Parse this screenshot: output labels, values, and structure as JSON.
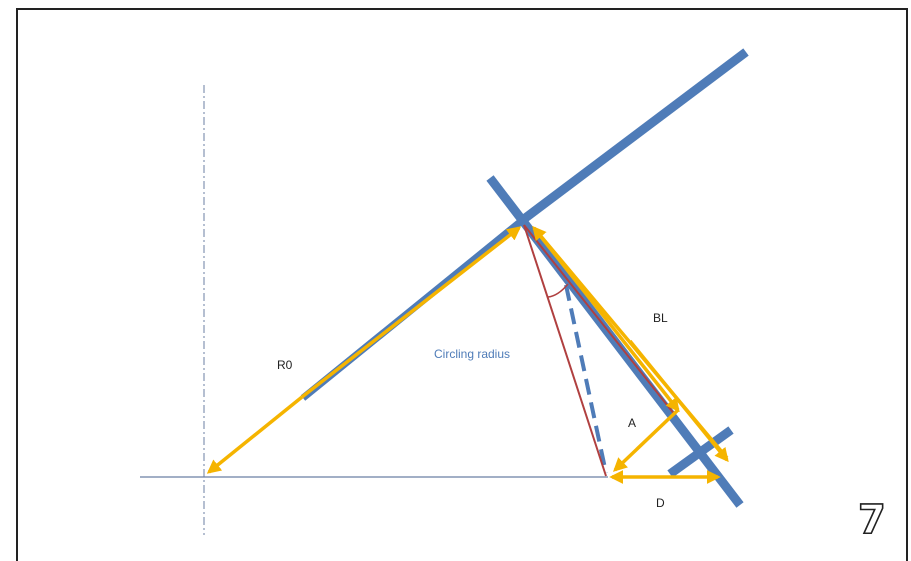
{
  "labels": {
    "r0": "R0",
    "circling_radius": "Circling radius",
    "bl": "BL",
    "a": "A",
    "d": "D"
  },
  "page_number": "7",
  "colors": {
    "wing_blue": "#4f7cb8",
    "arrow_yellow": "#f5b400",
    "angle_red": "#b04040",
    "axis_line": "#6b7fa3",
    "frame": "#222222"
  }
}
